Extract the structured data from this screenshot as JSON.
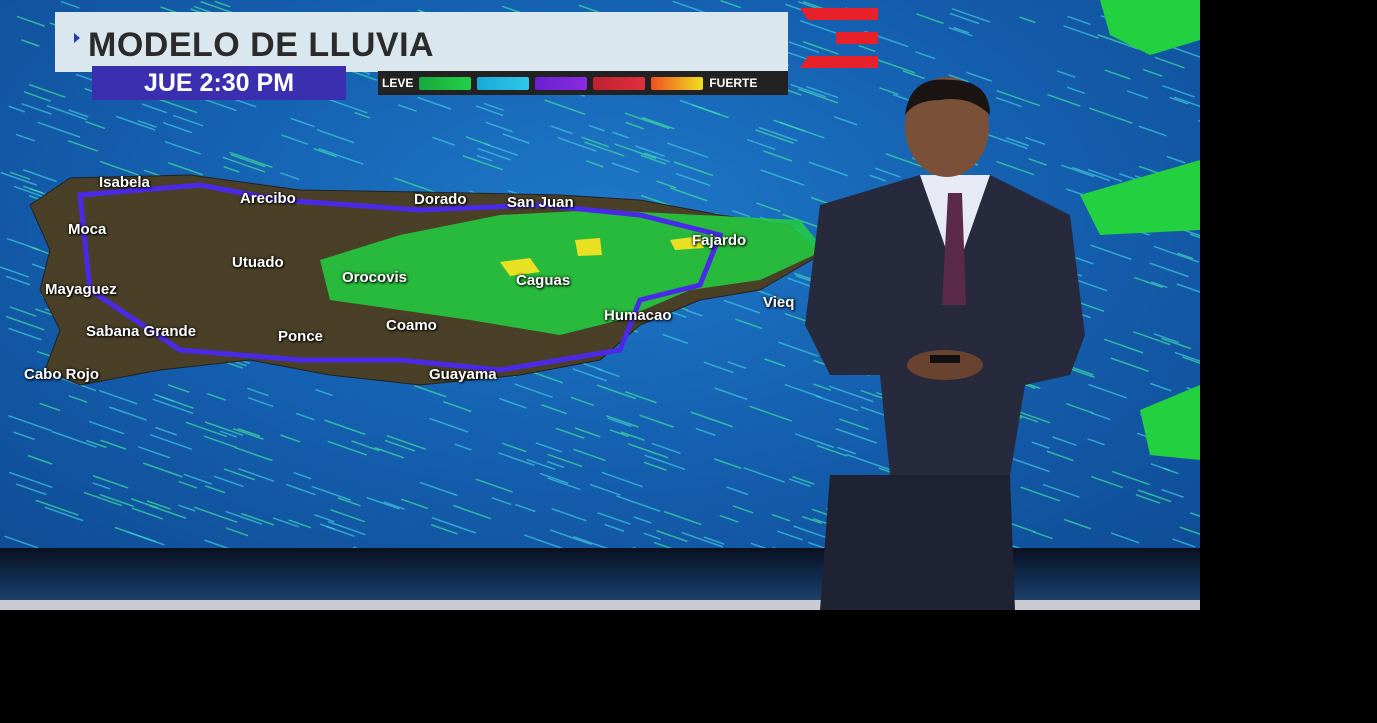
{
  "broadcast": {
    "title": "MODELO DE LLUVIA",
    "time": "JUE 2:30 PM",
    "legend": {
      "low_label": "LEVE",
      "high_label": "FUERTE",
      "colors": [
        "#22d04a",
        "#2ec8e8",
        "#8a2be2",
        "#e03040",
        "#f0a020"
      ]
    },
    "logo_color": "#e8202a"
  },
  "map": {
    "cities": [
      "Isabela",
      "Arecibo",
      "Dorado",
      "San Juan",
      "Moca",
      "Fajardo",
      "Utuado",
      "Orocovis",
      "Caguas",
      "Mayaguez",
      "Humacao",
      "Vieq",
      "Sabana Grande",
      "Ponce",
      "Coamo",
      "Cabo Rojo",
      "Guayama"
    ]
  }
}
